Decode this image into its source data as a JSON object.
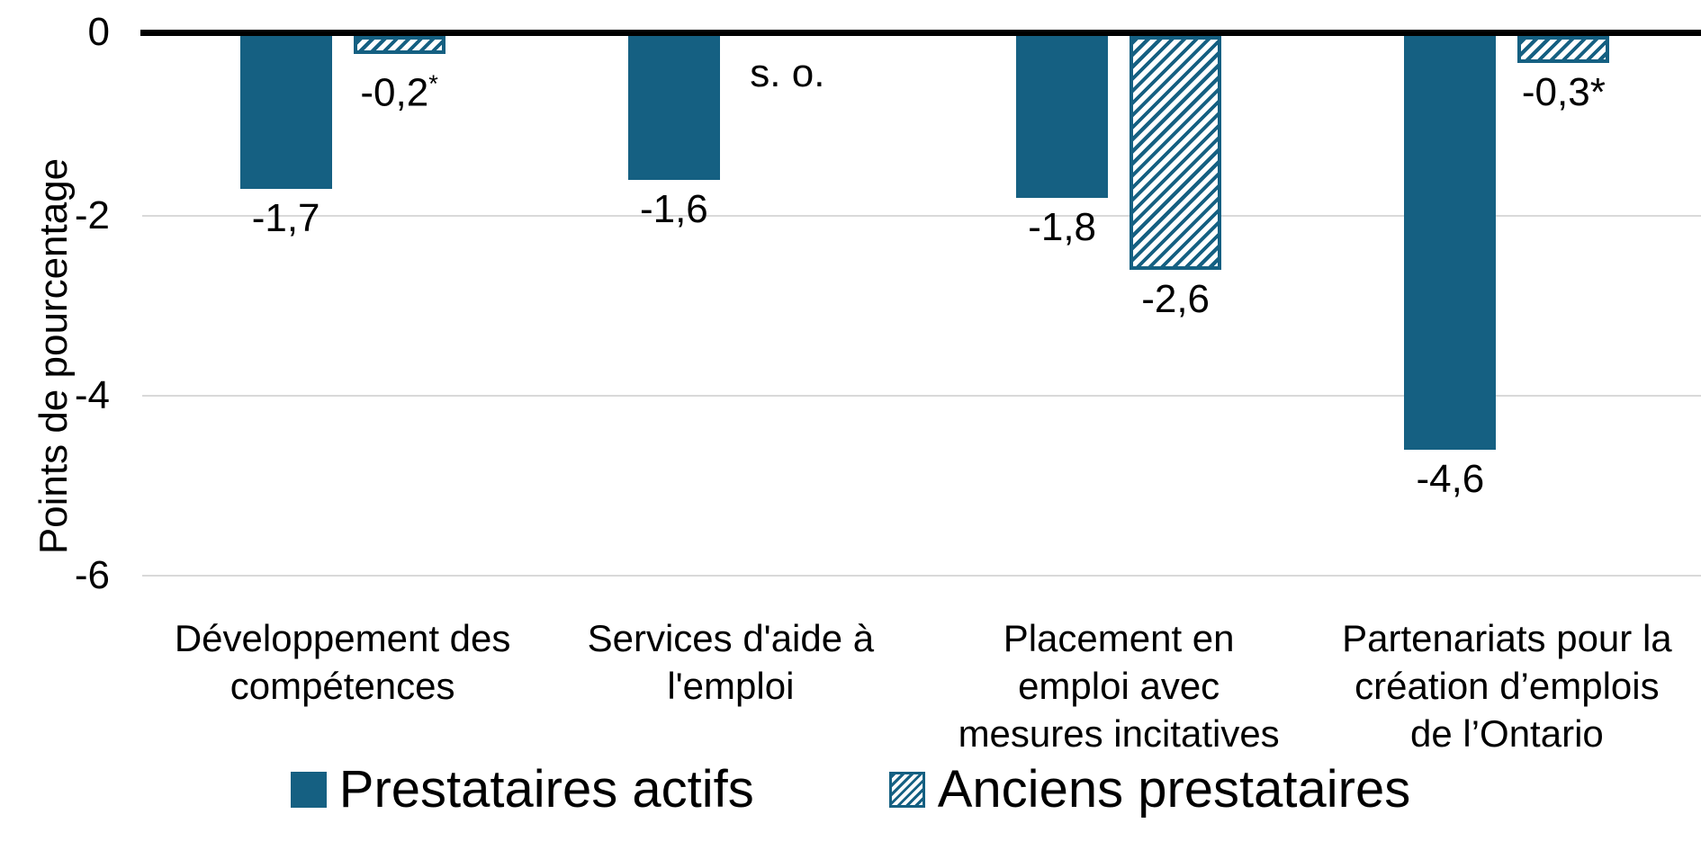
{
  "chart_data": {
    "type": "bar",
    "title": "",
    "ylabel": "Points de pourcentage",
    "xlabel": "",
    "ylim": [
      -6,
      0
    ],
    "yticks": [
      {
        "value": 0,
        "label": "0"
      },
      {
        "value": -2,
        "label": "-2"
      },
      {
        "value": -4,
        "label": "-4"
      },
      {
        "value": -6,
        "label": "-6"
      }
    ],
    "grid": "horizontal",
    "legend_position": "bottom",
    "categories": [
      {
        "lines": [
          "Développement des",
          "compétences"
        ]
      },
      {
        "lines": [
          "Services d'aide à",
          "l'emploi"
        ]
      },
      {
        "lines": [
          "Placement en",
          "emploi avec",
          "mesures incitatives"
        ]
      },
      {
        "lines": [
          "Partenariats pour la",
          "création d’emplois",
          "de l’Ontario"
        ]
      }
    ],
    "series": [
      {
        "name": "Prestataires actifs",
        "style": "solid",
        "values": [
          -1.7,
          -1.6,
          -1.8,
          -4.6
        ],
        "data_labels": [
          {
            "text": "-1,7"
          },
          {
            "text": "-1,6"
          },
          {
            "text": "-1,8"
          },
          {
            "text": "-4,6"
          }
        ]
      },
      {
        "name": "Anciens prestataires",
        "style": "hatched",
        "values": [
          -0.2,
          null,
          -2.6,
          -0.3
        ],
        "data_labels": [
          {
            "text": "-0,2",
            "sup": "*"
          },
          {
            "text": "s. o.",
            "na": true
          },
          {
            "text": "-2,6"
          },
          {
            "text": "-0,3*"
          }
        ]
      }
    ],
    "colors": {
      "series": "#156082",
      "hatch_background": "#ffffff",
      "gridline": "#d9d9d9",
      "axis_line": "#000000",
      "text": "#000000"
    }
  },
  "legend": {
    "items": [
      {
        "label": "Prestataires actifs",
        "swatch": "solid"
      },
      {
        "label": "Anciens prestataires",
        "swatch": "hatched"
      }
    ]
  }
}
